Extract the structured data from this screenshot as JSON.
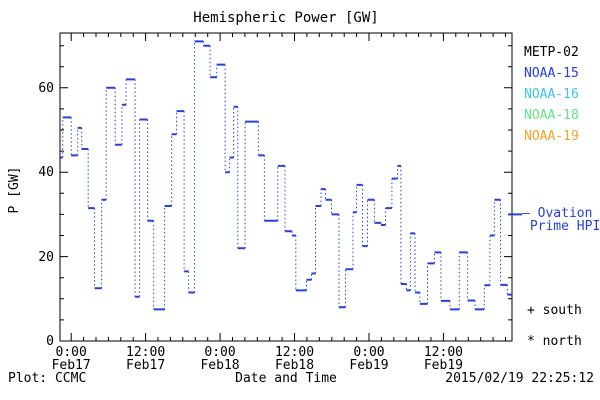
{
  "title": "Hemispheric Power [GW]",
  "y_axis_label": "P [GW]",
  "x_axis_label": "Date and Time",
  "footer": {
    "plot_credit": "Plot: CCMC",
    "timestamp": "2015/02/19 22:25:12"
  },
  "legend": {
    "satellites": [
      {
        "label": "METP-02",
        "color": "#000000"
      },
      {
        "label": "NOAA-15",
        "color": "#2441dd"
      },
      {
        "label": "NOAA-16",
        "color": "#3cc3f0"
      },
      {
        "label": "NOAA-18",
        "color": "#63e383"
      },
      {
        "label": "NOAA-19",
        "color": "#f2a227"
      }
    ],
    "model_label_line1": "— Ovation",
    "model_label_line2": "Prime HPI",
    "model_color": "#2441dd",
    "south_marker_label": "+ south",
    "north_marker_label": "* north"
  },
  "chart_data": {
    "type": "line",
    "subtype": "step-histogram",
    "title": "Hemispheric Power [GW]",
    "xlabel": "Date and Time",
    "ylabel": "P [GW]",
    "grid": false,
    "ylim": [
      0,
      73
    ],
    "y_major_ticks": [
      0,
      20,
      40,
      60
    ],
    "y_minor_step": 5,
    "xlim_hours_from_feb17_0000": [
      -1.8,
      71.05
    ],
    "x_minor_step_hours": 2,
    "x_major_ticks": [
      {
        "t": 0,
        "time": "0:00",
        "date": "Feb17"
      },
      {
        "t": 12,
        "time": "12:00",
        "date": "Feb17"
      },
      {
        "t": 24,
        "time": "0:00",
        "date": "Feb18"
      },
      {
        "t": 36,
        "time": "12:00",
        "date": "Feb18"
      },
      {
        "t": 48,
        "time": "0:00",
        "date": "Feb19"
      },
      {
        "t": 60,
        "time": "12:00",
        "date": "Feb19"
      }
    ],
    "hpi_right_edge_marker_gw": 30,
    "series": [
      {
        "name": "Ovation Prime HPI",
        "color": "#2441dd",
        "style": "dotted-step",
        "end_hour": 71.05,
        "steps_hour_gw": [
          [
            -1.77,
            43.5
          ],
          [
            -1.37,
            53
          ],
          [
            0,
            44
          ],
          [
            1.05,
            50.5
          ],
          [
            1.69,
            45.5
          ],
          [
            2.74,
            31.5
          ],
          [
            3.78,
            12.5
          ],
          [
            4.91,
            33.5
          ],
          [
            5.64,
            60
          ],
          [
            7.09,
            46.5
          ],
          [
            8.17,
            56
          ],
          [
            8.86,
            62
          ],
          [
            10.31,
            10.5
          ],
          [
            11.03,
            52.5
          ],
          [
            12.32,
            28.5
          ],
          [
            13.29,
            7.5
          ],
          [
            15.06,
            32
          ],
          [
            16.19,
            49
          ],
          [
            16.99,
            54.5
          ],
          [
            18.2,
            16.5
          ],
          [
            18.93,
            11.5
          ],
          [
            19.89,
            71
          ],
          [
            21.31,
            70
          ],
          [
            22.39,
            62.5
          ],
          [
            23.47,
            65.5
          ],
          [
            24.81,
            40
          ],
          [
            25.53,
            43.5
          ],
          [
            26.18,
            55.5
          ],
          [
            26.85,
            22
          ],
          [
            28.03,
            52
          ],
          [
            30.17,
            44
          ],
          [
            31.14,
            28.5
          ],
          [
            33.3,
            41.5
          ],
          [
            34.47,
            26
          ],
          [
            35.6,
            25
          ],
          [
            36.2,
            12
          ],
          [
            37.93,
            14.5
          ],
          [
            38.74,
            16
          ],
          [
            39.38,
            32
          ],
          [
            40.27,
            36
          ],
          [
            40.99,
            33.5
          ],
          [
            41.96,
            30
          ],
          [
            43.17,
            8
          ],
          [
            44.22,
            17
          ],
          [
            45.43,
            30.5
          ],
          [
            45.98,
            37
          ],
          [
            46.95,
            22.5
          ],
          [
            47.76,
            33.5
          ],
          [
            48.88,
            28
          ],
          [
            49.93,
            27.5
          ],
          [
            50.66,
            31.5
          ],
          [
            51.7,
            38.5
          ],
          [
            52.59,
            41.5
          ],
          [
            53.15,
            13.5
          ],
          [
            54.04,
            12
          ],
          [
            54.68,
            25.5
          ],
          [
            55.41,
            11.5
          ],
          [
            56.21,
            8.8
          ],
          [
            57.43,
            18.4
          ],
          [
            58.56,
            21
          ],
          [
            59.6,
            9.5
          ],
          [
            61.05,
            7.5
          ],
          [
            62.55,
            21
          ],
          [
            63.9,
            9.6
          ],
          [
            65.08,
            7.5
          ],
          [
            66.58,
            13.2
          ],
          [
            67.49,
            25
          ],
          [
            68.22,
            33.5
          ],
          [
            69.19,
            13.3
          ],
          [
            70.31,
            11
          ]
        ]
      }
    ]
  }
}
